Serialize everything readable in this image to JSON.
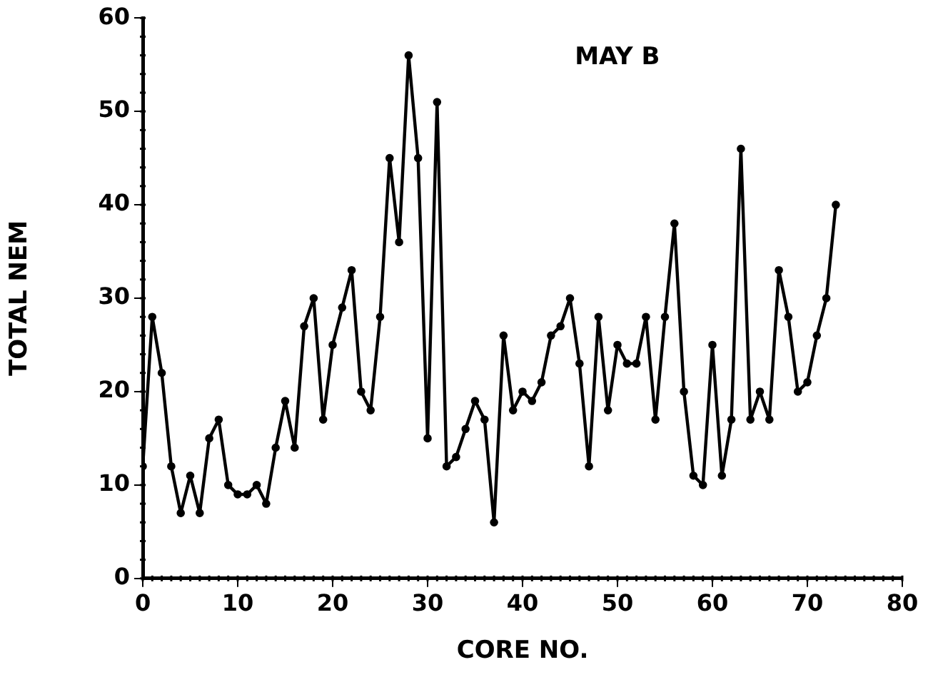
{
  "chart_data": {
    "type": "line",
    "title": "MAY B",
    "xlabel": "CORE NO.",
    "ylabel": "TOTAL NEM",
    "x": [
      0,
      1,
      2,
      3,
      4,
      5,
      6,
      7,
      8,
      9,
      10,
      11,
      12,
      13,
      14,
      15,
      16,
      17,
      18,
      19,
      20,
      21,
      22,
      23,
      24,
      25,
      26,
      27,
      28,
      29,
      30,
      31,
      32,
      33,
      34,
      35,
      36,
      37,
      38,
      39,
      40,
      41,
      42,
      43,
      44,
      45,
      46,
      47,
      48,
      49,
      50,
      51,
      52,
      53,
      54,
      55,
      56,
      57,
      58,
      59,
      60,
      61,
      62,
      63,
      64,
      65,
      66,
      67,
      68,
      69,
      70,
      71,
      72,
      73
    ],
    "series": [
      {
        "color": "#000000",
        "values": [
          12,
          28,
          22,
          12,
          7,
          11,
          7,
          15,
          17,
          10,
          9,
          9,
          10,
          8,
          14,
          19,
          14,
          27,
          30,
          17,
          25,
          29,
          33,
          20,
          18,
          28,
          45,
          36,
          56,
          45,
          15,
          51,
          12,
          13,
          16,
          19,
          17,
          6,
          26,
          18,
          20,
          19,
          21,
          26,
          27,
          30,
          23,
          12,
          28,
          18,
          25,
          23,
          23,
          28,
          17,
          28,
          38,
          20,
          11,
          10,
          25,
          11,
          17,
          46,
          17,
          20,
          17,
          33,
          28,
          20,
          21,
          26,
          30,
          40
        ]
      }
    ],
    "xlim": [
      0,
      80
    ],
    "xticks": [
      0,
      10,
      20,
      30,
      40,
      50,
      60,
      70,
      80
    ],
    "ylim": [
      0,
      60
    ],
    "yticks": [
      0,
      10,
      20,
      30,
      40,
      50,
      60
    ],
    "grid": false,
    "legend": false,
    "marker": "circle",
    "line_style": "solid"
  }
}
